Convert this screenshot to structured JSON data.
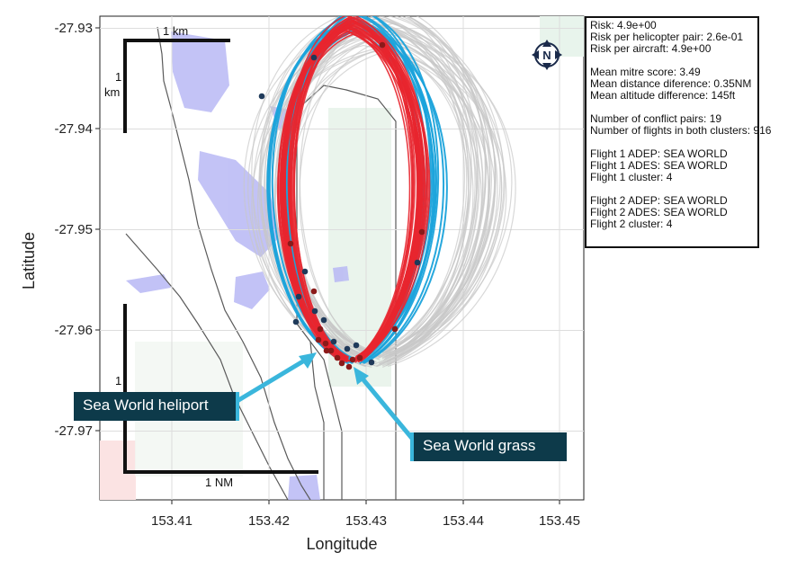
{
  "axes": {
    "xlabel": "Longitude",
    "ylabel": "Latitude",
    "xticks": [
      "153.41",
      "153.42",
      "153.43",
      "153.44",
      "153.45"
    ],
    "yticks": [
      "-27.93",
      "-27.94",
      "-27.95",
      "-27.96",
      "-27.97"
    ]
  },
  "scale_bars": {
    "top_km": "1 km",
    "left_km_line1": "1",
    "left_km_line2": "km",
    "left_nm": "1",
    "bottom_nm": "1 NM"
  },
  "compass": {
    "letter": "N",
    "icon": "north-arrow-icon"
  },
  "info": {
    "risk": "Risk: 4.9e+00",
    "risk_pair": "Risk per helicopter pair: 2.6e-01",
    "risk_aircraft": "Risk per aircraft: 4.9e+00",
    "mitre": "Mean mitre score: 3.49",
    "dist": "Mean distance diference: 0.35NM",
    "alt": "Mean altitude difference: 145ft",
    "conflicts": "Number of conflict pairs: 19",
    "flights": "Number of flights in both clusters: 916",
    "f1_adep": "Flight 1 ADEP: SEA WORLD",
    "f1_ades": "Flight 1 ADES: SEA WORLD",
    "f1_cluster": "Flight 1 cluster: 4",
    "f2_adep": "Flight 2 ADEP: SEA WORLD",
    "f2_ades": "Flight 2 ADES: SEA WORLD",
    "f2_cluster": "Flight 2 cluster: 4"
  },
  "callouts": {
    "heliport": "Sea World heliport",
    "grass": "Sea World grass"
  },
  "colors": {
    "red_track": "#e8262f",
    "blue_track": "#1ba3db",
    "grey_track": "#c8c8c8",
    "water": "#b8b8f5",
    "callout_bg": "#0d3a4a",
    "arrow": "#3ab6dc"
  }
}
